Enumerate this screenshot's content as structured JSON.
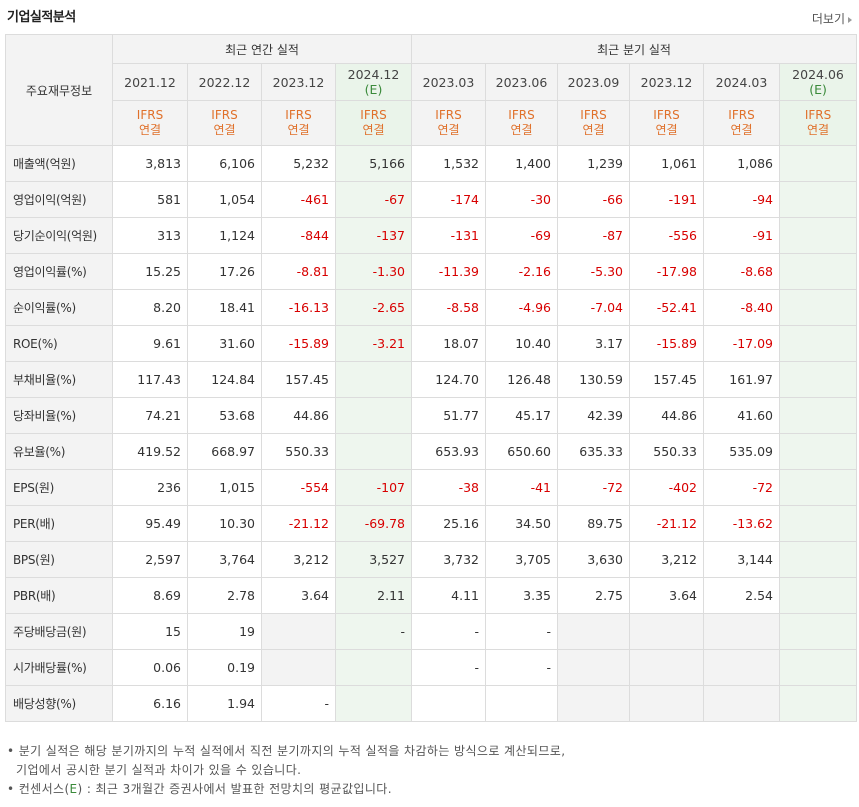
{
  "title": "기업실적분석",
  "more_label": "더보기",
  "label_header": "주요재무정보",
  "groups": {
    "annual": "최근 연간 실적",
    "quarter": "최근 분기 실적"
  },
  "columns": [
    {
      "period": "2021.12",
      "est": "",
      "ifrs": "IFRS",
      "basis": "연결"
    },
    {
      "period": "2022.12",
      "est": "",
      "ifrs": "IFRS",
      "basis": "연결"
    },
    {
      "period": "2023.12",
      "est": "",
      "ifrs": "IFRS",
      "basis": "연결"
    },
    {
      "period": "2024.12",
      "est": "(E)",
      "ifrs": "IFRS",
      "basis": "연결"
    },
    {
      "period": "2023.03",
      "est": "",
      "ifrs": "IFRS",
      "basis": "연결"
    },
    {
      "period": "2023.06",
      "est": "",
      "ifrs": "IFRS",
      "basis": "연결"
    },
    {
      "period": "2023.09",
      "est": "",
      "ifrs": "IFRS",
      "basis": "연결"
    },
    {
      "period": "2023.12",
      "est": "",
      "ifrs": "IFRS",
      "basis": "연결"
    },
    {
      "period": "2024.03",
      "est": "",
      "ifrs": "IFRS",
      "basis": "연결"
    },
    {
      "period": "2024.06",
      "est": "(E)",
      "ifrs": "IFRS",
      "basis": "연결"
    }
  ],
  "rows": [
    {
      "label": "매출액(억원)",
      "values": [
        "3,813",
        "6,106",
        "5,232",
        "5,166",
        "1,532",
        "1,400",
        "1,239",
        "1,061",
        "1,086",
        ""
      ]
    },
    {
      "label": "영업이익(억원)",
      "values": [
        "581",
        "1,054",
        "-461",
        "-67",
        "-174",
        "-30",
        "-66",
        "-191",
        "-94",
        ""
      ]
    },
    {
      "label": "당기순이익(억원)",
      "values": [
        "313",
        "1,124",
        "-844",
        "-137",
        "-131",
        "-69",
        "-87",
        "-556",
        "-91",
        ""
      ]
    },
    {
      "label": "영업이익률(%)",
      "values": [
        "15.25",
        "17.26",
        "-8.81",
        "-1.30",
        "-11.39",
        "-2.16",
        "-5.30",
        "-17.98",
        "-8.68",
        ""
      ]
    },
    {
      "label": "순이익률(%)",
      "values": [
        "8.20",
        "18.41",
        "-16.13",
        "-2.65",
        "-8.58",
        "-4.96",
        "-7.04",
        "-52.41",
        "-8.40",
        ""
      ]
    },
    {
      "label": "ROE(%)",
      "values": [
        "9.61",
        "31.60",
        "-15.89",
        "-3.21",
        "18.07",
        "10.40",
        "3.17",
        "-15.89",
        "-17.09",
        ""
      ]
    },
    {
      "label": "부채비율(%)",
      "values": [
        "117.43",
        "124.84",
        "157.45",
        "",
        "124.70",
        "126.48",
        "130.59",
        "157.45",
        "161.97",
        ""
      ]
    },
    {
      "label": "당좌비율(%)",
      "values": [
        "74.21",
        "53.68",
        "44.86",
        "",
        "51.77",
        "45.17",
        "42.39",
        "44.86",
        "41.60",
        ""
      ]
    },
    {
      "label": "유보율(%)",
      "values": [
        "419.52",
        "668.97",
        "550.33",
        "",
        "653.93",
        "650.60",
        "635.33",
        "550.33",
        "535.09",
        ""
      ]
    },
    {
      "label": "EPS(원)",
      "values": [
        "236",
        "1,015",
        "-554",
        "-107",
        "-38",
        "-41",
        "-72",
        "-402",
        "-72",
        ""
      ]
    },
    {
      "label": "PER(배)",
      "values": [
        "95.49",
        "10.30",
        "-21.12",
        "-69.78",
        "25.16",
        "34.50",
        "89.75",
        "-21.12",
        "-13.62",
        ""
      ]
    },
    {
      "label": "BPS(원)",
      "values": [
        "2,597",
        "3,764",
        "3,212",
        "3,527",
        "3,732",
        "3,705",
        "3,630",
        "3,212",
        "3,144",
        ""
      ]
    },
    {
      "label": "PBR(배)",
      "values": [
        "8.69",
        "2.78",
        "3.64",
        "2.11",
        "4.11",
        "3.35",
        "2.75",
        "3.64",
        "2.54",
        ""
      ]
    },
    {
      "label": "주당배당금(원)",
      "values": [
        "15",
        "19",
        "",
        "-",
        "-",
        "-",
        "",
        "",
        "",
        ""
      ]
    },
    {
      "label": "시가배당률(%)",
      "values": [
        "0.06",
        "0.19",
        "",
        "",
        "-",
        "-",
        "",
        "",
        "",
        ""
      ]
    },
    {
      "label": "배당성향(%)",
      "values": [
        "6.16",
        "1.94",
        "-",
        "",
        "",
        "",
        "",
        "",
        "",
        ""
      ]
    }
  ],
  "grey_cells": [
    [
      13,
      2
    ],
    [
      13,
      6
    ],
    [
      13,
      7
    ],
    [
      13,
      8
    ],
    [
      14,
      2
    ],
    [
      14,
      6
    ],
    [
      14,
      7
    ],
    [
      14,
      8
    ],
    [
      15,
      3
    ],
    [
      15,
      6
    ],
    [
      15,
      7
    ],
    [
      15,
      8
    ]
  ],
  "notes": {
    "line1": "분기 실적은 해당 분기까지의 누적 실적에서 직전 분기까지의 누적 실적을 차감하는 방식으로 계산되므로,",
    "line2": "기업에서 공시한 분기 실적과 차이가 있을 수 있습니다.",
    "line3_prefix": "컨센서스(",
    "line3_e": "E",
    "line3_suffix": ") : 최근 3개월간 증권사에서 발표한 전망치의 평균값입니다."
  }
}
